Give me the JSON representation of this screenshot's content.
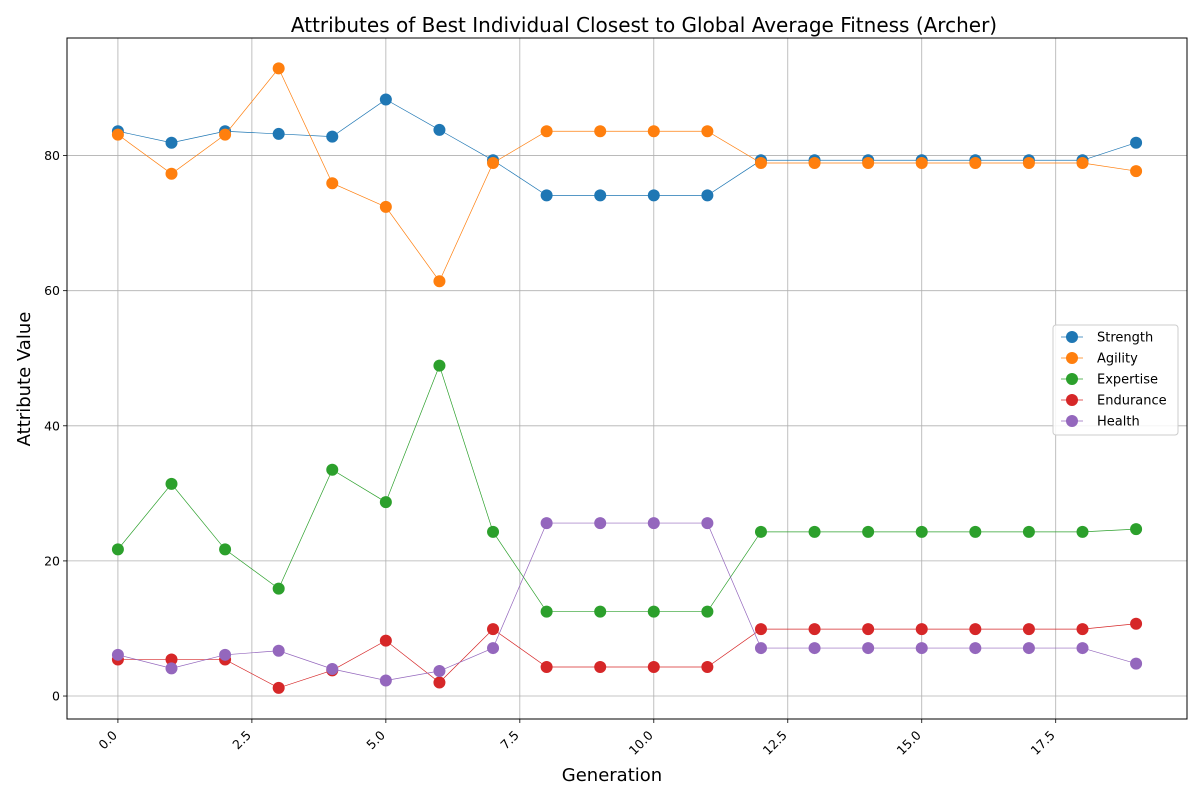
{
  "chart_data": {
    "type": "line",
    "title": "Attributes of Best Individual Closest to Global Average Fitness (Archer)",
    "xlabel": "Generation",
    "ylabel": "Attribute Value",
    "x": [
      0,
      1,
      2,
      3,
      4,
      5,
      6,
      7,
      8,
      9,
      10,
      11,
      12,
      13,
      14,
      15,
      16,
      17,
      18,
      19
    ],
    "xlim": [
      -0.95,
      19.95
    ],
    "ylim": [
      -3.4,
      97.4
    ],
    "xticks": [
      0.0,
      2.5,
      5.0,
      7.5,
      10.0,
      12.5,
      15.0,
      17.5
    ],
    "xtick_labels": [
      "0.0",
      "2.5",
      "5.0",
      "7.5",
      "10.0",
      "12.5",
      "15.0",
      "17.5"
    ],
    "yticks": [
      0,
      20,
      40,
      60,
      80
    ],
    "ytick_labels": [
      "0",
      "20",
      "40",
      "60",
      "80"
    ],
    "grid": true,
    "legend_position": "center-right",
    "series": [
      {
        "name": "Strength",
        "color": "#1f77b4",
        "values": [
          83.6,
          81.9,
          83.6,
          83.2,
          82.8,
          88.3,
          83.8,
          79.3,
          74.1,
          74.1,
          74.1,
          74.1,
          79.3,
          79.3,
          79.3,
          79.3,
          79.3,
          79.3,
          79.3,
          81.9
        ]
      },
      {
        "name": "Agility",
        "color": "#ff7f0e",
        "values": [
          83.1,
          77.3,
          83.1,
          92.9,
          75.9,
          72.4,
          61.4,
          78.9,
          83.6,
          83.6,
          83.6,
          83.6,
          78.9,
          78.9,
          78.9,
          78.9,
          78.9,
          78.9,
          78.9,
          77.7
        ]
      },
      {
        "name": "Expertise",
        "color": "#2ca02c",
        "values": [
          21.7,
          31.4,
          21.7,
          15.9,
          33.5,
          28.7,
          48.9,
          24.3,
          12.5,
          12.5,
          12.5,
          12.5,
          24.3,
          24.3,
          24.3,
          24.3,
          24.3,
          24.3,
          24.3,
          24.7
        ]
      },
      {
        "name": "Endurance",
        "color": "#d62728",
        "values": [
          5.4,
          5.4,
          5.4,
          1.2,
          3.8,
          8.2,
          2.0,
          9.9,
          4.3,
          4.3,
          4.3,
          4.3,
          9.9,
          9.9,
          9.9,
          9.9,
          9.9,
          9.9,
          9.9,
          10.7
        ]
      },
      {
        "name": "Health",
        "color": "#9467bd",
        "values": [
          6.1,
          4.1,
          6.1,
          6.7,
          4.0,
          2.3,
          3.7,
          7.1,
          25.6,
          25.6,
          25.6,
          25.6,
          7.1,
          7.1,
          7.1,
          7.1,
          7.1,
          7.1,
          7.1,
          4.8
        ]
      }
    ]
  }
}
